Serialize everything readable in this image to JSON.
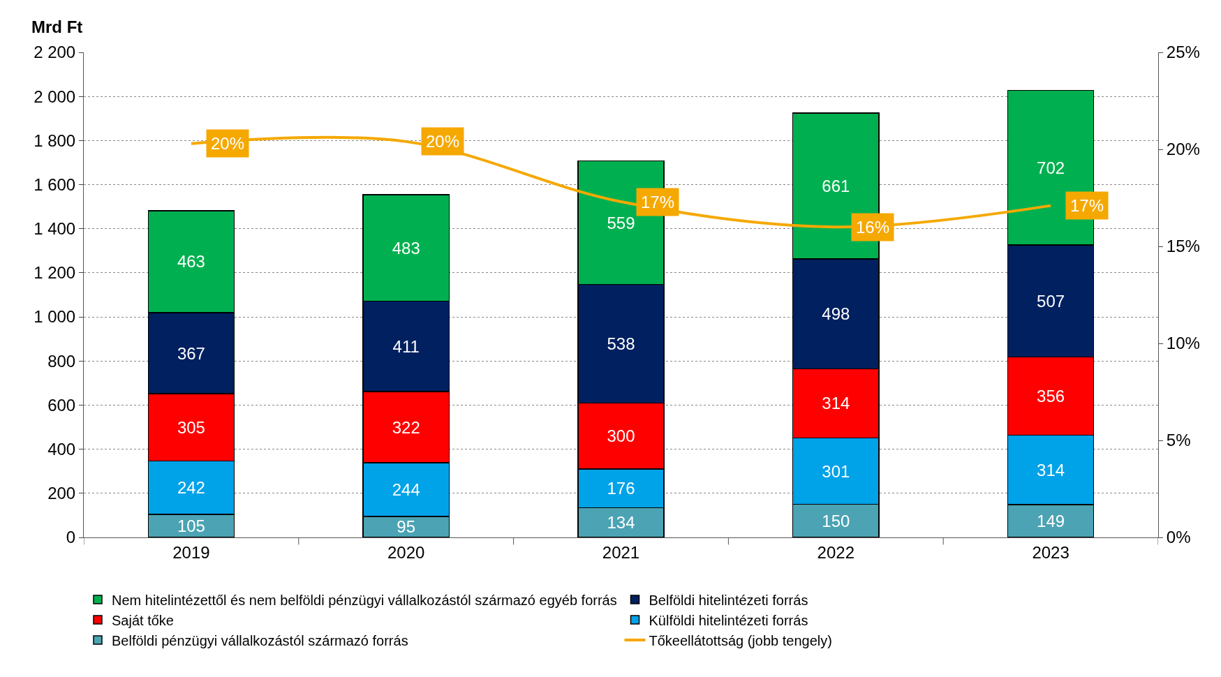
{
  "chart_data": {
    "type": "bar",
    "stacked": true,
    "ylabel": "Mrd Ft",
    "categories": [
      "2019",
      "2020",
      "2021",
      "2022",
      "2023"
    ],
    "series": [
      {
        "name": "Belföldi pénzügyi vállalkozástól származó forrás",
        "color": "#4ba3b3",
        "values": [
          105,
          95,
          134,
          150,
          149
        ]
      },
      {
        "name": "Külföldi hitelintézeti forrás",
        "color": "#00a2e8",
        "values": [
          242,
          244,
          176,
          301,
          314
        ]
      },
      {
        "name": "Saját tőke",
        "color": "#ff0000",
        "values": [
          305,
          322,
          300,
          314,
          356
        ]
      },
      {
        "name": "Belföldi hitelintézeti forrás",
        "color": "#002060",
        "values": [
          367,
          411,
          538,
          498,
          507
        ]
      },
      {
        "name": "Nem hitelintézettől és nem belföldi pénzügyi vállalkozástól származó egyéb forrás",
        "color": "#00b050",
        "values": [
          463,
          483,
          559,
          661,
          702
        ]
      },
      {
        "name": "Tőkeellátottság (jobb tengely)",
        "type": "line",
        "axis": "y2",
        "color": "#f5a800",
        "values": [
          20.3,
          20.4,
          17.3,
          16.0,
          17.1
        ],
        "value_labels": [
          "20%",
          "20%",
          "17%",
          "16%",
          "17%"
        ]
      }
    ],
    "data_labels": true,
    "ylim": [
      0,
      2200
    ],
    "yticks": [
      0,
      200,
      400,
      600,
      800,
      {
        "value": 1000,
        "label": "1 000"
      },
      {
        "value": 1200,
        "label": "1 200"
      },
      {
        "value": 1400,
        "label": "1 400"
      },
      {
        "value": 1600,
        "label": "1 600"
      },
      {
        "value": 1800,
        "label": "1 800"
      },
      {
        "value": 2000,
        "label": "2 000"
      },
      {
        "value": 2200,
        "label": "2 200"
      }
    ],
    "y2lim": [
      0,
      25
    ],
    "y2ticks": [
      {
        "value": 0,
        "label": "0%"
      },
      {
        "value": 5,
        "label": "5%"
      },
      {
        "value": 10,
        "label": "10%"
      },
      {
        "value": 15,
        "label": "15%"
      },
      {
        "value": 20,
        "label": "20%"
      },
      {
        "value": 25,
        "label": "25%"
      }
    ],
    "grid": "y",
    "legend": "bottom"
  }
}
